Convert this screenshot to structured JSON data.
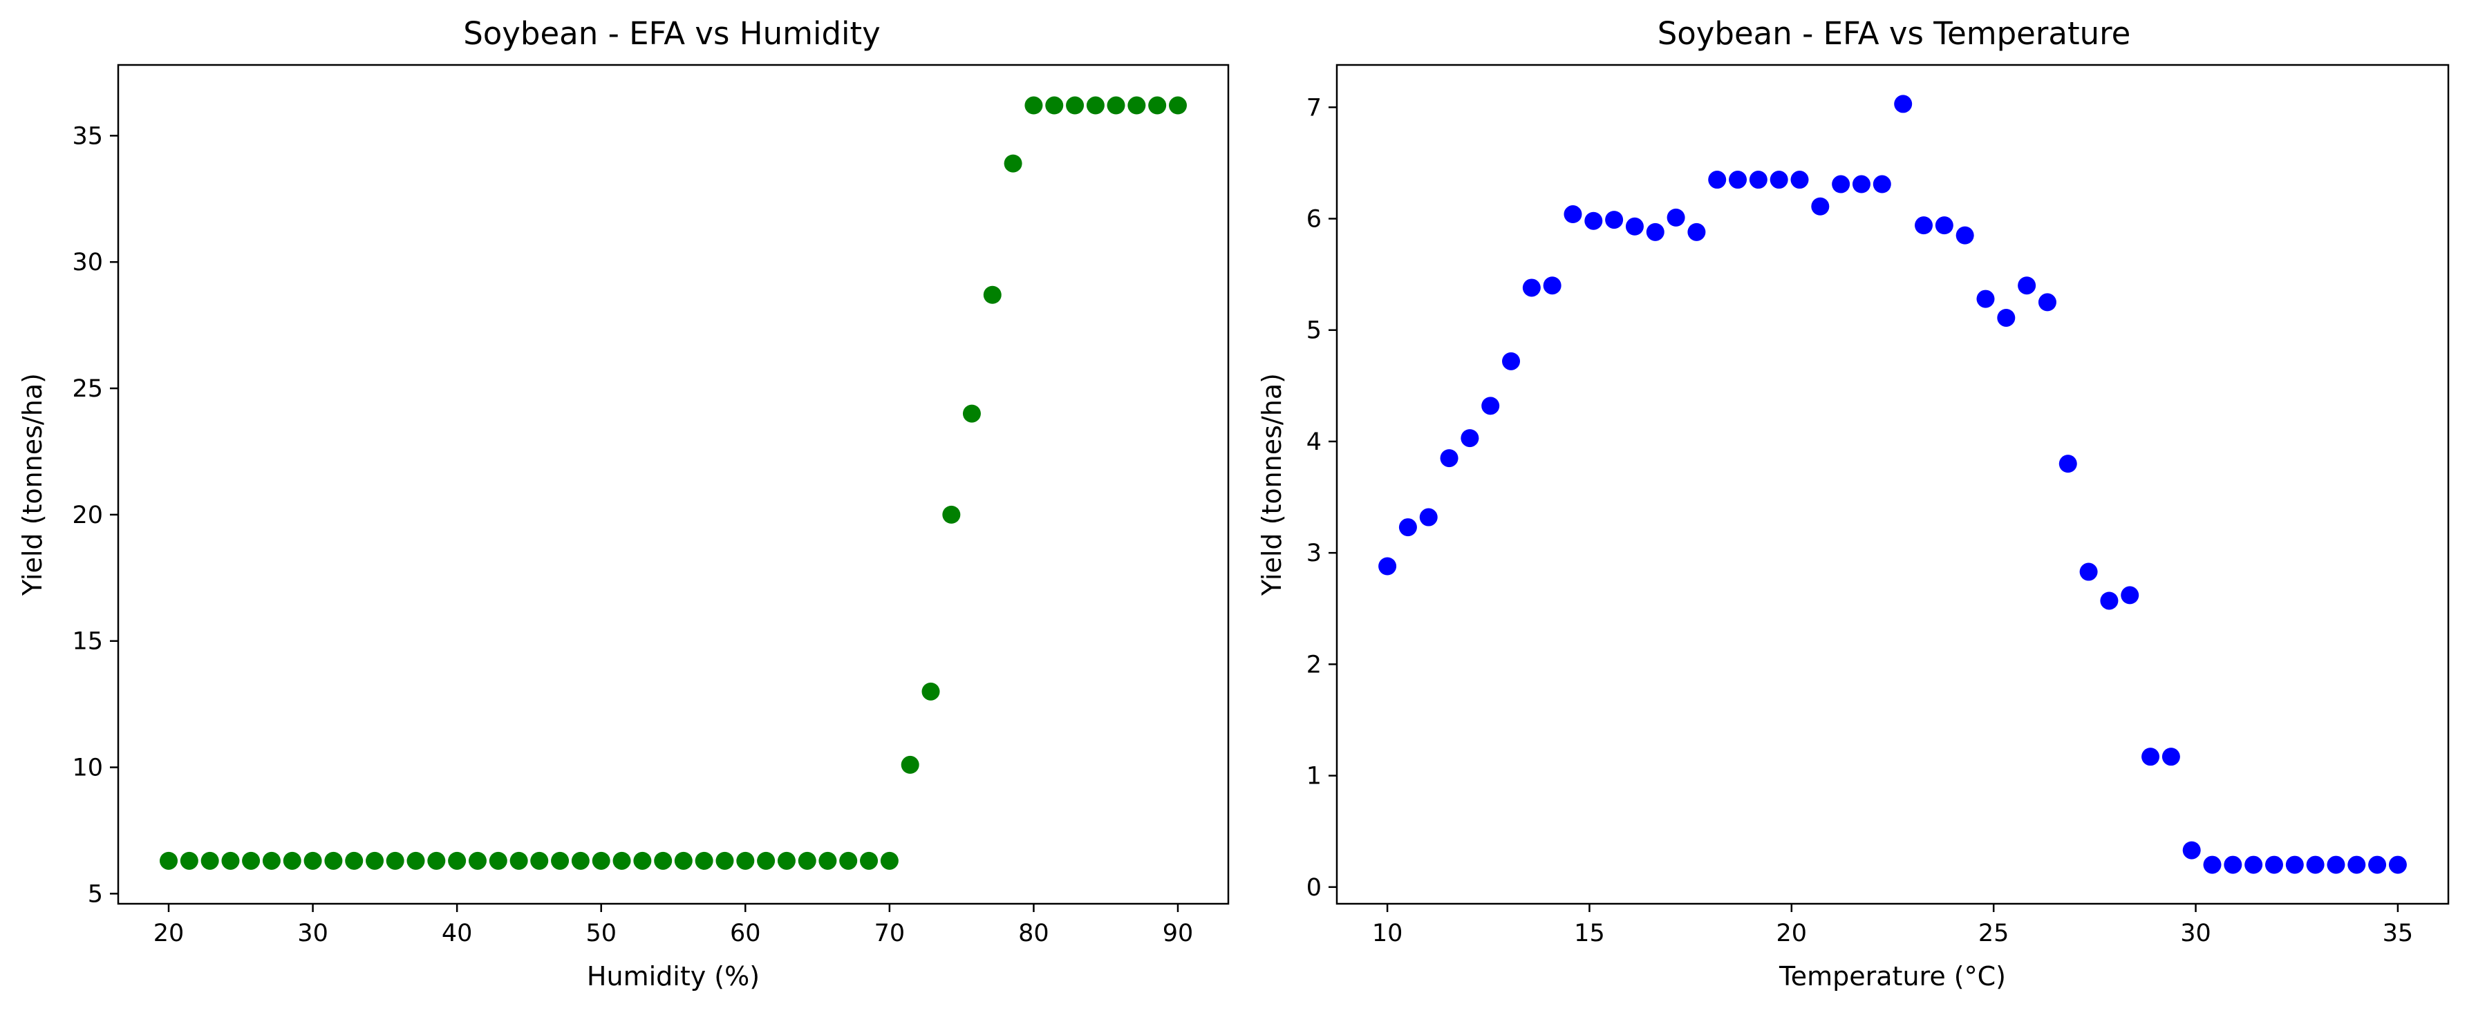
{
  "chart_data": [
    {
      "type": "scatter",
      "title": "Soybean - EFA vs Humidity",
      "xlabel": "Humidity (%)",
      "ylabel": "Yield (tonnes/ha)",
      "xlim": [
        16.5,
        93.5
      ],
      "ylim": [
        4.6,
        37.8
      ],
      "xticks": [
        20,
        30,
        40,
        50,
        60,
        70,
        80,
        90
      ],
      "yticks": [
        5,
        10,
        15,
        20,
        25,
        30,
        35
      ],
      "grid": false,
      "color": "#008000",
      "x": [
        20.0,
        21.43,
        22.86,
        24.29,
        25.71,
        27.14,
        28.57,
        30.0,
        31.43,
        32.86,
        34.29,
        35.71,
        37.14,
        38.57,
        40.0,
        41.43,
        42.86,
        44.29,
        45.71,
        47.14,
        48.57,
        50.0,
        51.43,
        52.86,
        54.29,
        55.71,
        57.14,
        58.57,
        60.0,
        61.43,
        62.86,
        64.29,
        65.71,
        67.14,
        68.57,
        70.0,
        71.43,
        72.86,
        74.29,
        75.71,
        77.14,
        78.57,
        80.0,
        81.43,
        82.86,
        84.29,
        85.71,
        87.14,
        88.57,
        90.0
      ],
      "y": [
        6.3,
        6.3,
        6.3,
        6.3,
        6.3,
        6.3,
        6.3,
        6.3,
        6.3,
        6.3,
        6.3,
        6.3,
        6.3,
        6.3,
        6.3,
        6.3,
        6.3,
        6.3,
        6.3,
        6.3,
        6.3,
        6.3,
        6.3,
        6.3,
        6.3,
        6.3,
        6.3,
        6.3,
        6.3,
        6.3,
        6.3,
        6.3,
        6.3,
        6.3,
        6.3,
        6.3,
        10.1,
        13.0,
        20.0,
        24.0,
        28.7,
        33.9,
        36.2,
        36.2,
        36.2,
        36.2,
        36.2,
        36.2,
        36.2,
        36.2
      ]
    },
    {
      "type": "scatter",
      "title": "Soybean - EFA vs Temperature",
      "xlabel": "Temperature (°C)",
      "ylabel": "Yield (tonnes/ha)",
      "xlim": [
        8.75,
        36.25
      ],
      "ylim": [
        -0.15,
        7.38
      ],
      "xticks": [
        10,
        15,
        20,
        25,
        30,
        35
      ],
      "yticks": [
        0,
        1,
        2,
        3,
        4,
        5,
        6,
        7
      ],
      "grid": false,
      "color": "#0000ff",
      "x": [
        10.0,
        10.51,
        11.02,
        11.53,
        12.04,
        12.55,
        13.06,
        13.57,
        14.08,
        14.59,
        15.1,
        15.61,
        16.12,
        16.63,
        17.14,
        17.65,
        18.16,
        18.67,
        19.18,
        19.69,
        20.2,
        20.71,
        21.22,
        21.73,
        22.24,
        22.76,
        23.27,
        23.78,
        24.29,
        24.8,
        25.31,
        25.82,
        26.33,
        26.84,
        27.35,
        27.86,
        28.37,
        28.88,
        29.39,
        29.9,
        30.41,
        30.92,
        31.43,
        31.94,
        32.45,
        32.96,
        33.47,
        33.98,
        34.49,
        35.0
      ],
      "y": [
        2.88,
        3.23,
        3.32,
        3.85,
        4.03,
        4.32,
        4.72,
        5.38,
        5.4,
        6.04,
        5.98,
        5.99,
        5.93,
        5.88,
        6.01,
        5.88,
        6.35,
        6.35,
        6.35,
        6.35,
        6.35,
        6.11,
        6.31,
        6.31,
        6.31,
        7.03,
        5.94,
        5.94,
        5.85,
        5.28,
        5.11,
        5.4,
        5.25,
        3.8,
        2.83,
        2.57,
        2.62,
        1.17,
        1.17,
        0.33,
        0.2,
        0.2,
        0.2,
        0.2,
        0.2,
        0.2,
        0.2,
        0.2,
        0.2,
        0.2
      ]
    }
  ]
}
